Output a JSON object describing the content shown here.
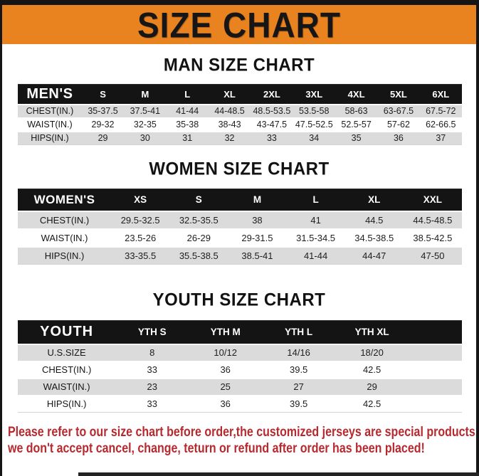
{
  "banner": {
    "title": "SIZE CHART"
  },
  "colors": {
    "banner_orange": "#E8831F",
    "frame_black": "#151515",
    "table_header_black": "#141414",
    "row_gray": "#DBDBDB",
    "disclaimer_red": "#B62A2F"
  },
  "sections": [
    {
      "title": "MAN SIZE CHART",
      "table": {
        "header": [
          "MEN'S",
          "S",
          "M",
          "L",
          "XL",
          "2XL",
          "3XL",
          "4XL",
          "5XL",
          "6XL"
        ],
        "rows": [
          {
            "label": "CHEST(IN.)",
            "values": [
              "35-37.5",
              "37.5-41",
              "41-44",
              "44-48.5",
              "48.5-53.5",
              "53.5-58",
              "58-63",
              "63-67.5",
              "67.5-72"
            ]
          },
          {
            "label": "WAIST(IN.)",
            "values": [
              "29-32",
              "32-35",
              "35-38",
              "38-43",
              "43-47.5",
              "47.5-52.5",
              "52.5-57",
              "57-62",
              "62-66.5"
            ]
          },
          {
            "label": "HIPS(IN.)",
            "values": [
              "29",
              "30",
              "31",
              "32",
              "33",
              "34",
              "35",
              "36",
              "37"
            ]
          }
        ]
      }
    },
    {
      "title": "WOMEN SIZE CHART",
      "table": {
        "header": [
          "WOMEN'S",
          "XS",
          "S",
          "M",
          "L",
          "XL",
          "XXL"
        ],
        "rows": [
          {
            "label": "CHEST(IN.)",
            "values": [
              "29.5-32.5",
              "32.5-35.5",
              "38",
              "41",
              "44.5",
              "44.5-48.5"
            ]
          },
          {
            "label": "WAIST(IN.)",
            "values": [
              "23.5-26",
              "26-29",
              "29-31.5",
              "31.5-34.5",
              "34.5-38.5",
              "38.5-42.5"
            ]
          },
          {
            "label": "HIPS(IN.)",
            "values": [
              "33-35.5",
              "35.5-38.5",
              "38.5-41",
              "41-44",
              "44-47",
              "47-50"
            ]
          }
        ]
      }
    },
    {
      "title": "YOUTH SIZE CHART",
      "table": {
        "header": [
          "YOUTH",
          "YTH S",
          "YTH M",
          "YTH L",
          "YTH XL"
        ],
        "rows": [
          {
            "label": "U.S.SIZE",
            "values": [
              "8",
              "10/12",
              "14/16",
              "18/20"
            ]
          },
          {
            "label": "CHEST(IN.)",
            "values": [
              "33",
              "36",
              "39.5",
              "42.5"
            ]
          },
          {
            "label": "WAIST(IN.)",
            "values": [
              "23",
              "25",
              "27",
              "29"
            ]
          },
          {
            "label": "HIPS(IN.)",
            "values": [
              "33",
              "36",
              "39.5",
              "42.5"
            ]
          }
        ]
      }
    }
  ],
  "disclaimer": {
    "line1": "Please refer to our size chart before order,the customized jerseys are special products,",
    "line2": "we don't accept cancel, change, teturn or refund after order has been placed!"
  }
}
